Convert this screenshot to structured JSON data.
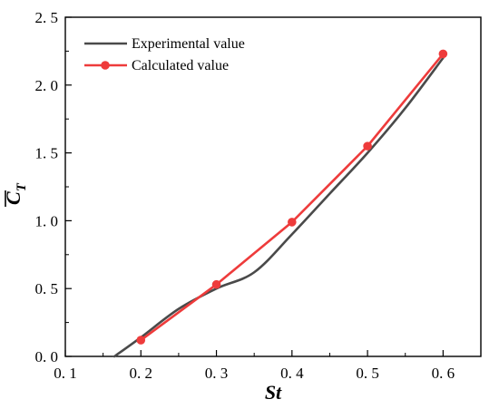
{
  "chart_data": {
    "type": "line",
    "title": "",
    "xlabel": "St",
    "ylabel_main": "C",
    "ylabel_subscript": "T",
    "xlim": [
      0.1,
      0.65
    ],
    "ylim": [
      0.0,
      2.5
    ],
    "x_ticks": [
      {
        "value": 0.1,
        "label": "0. 1"
      },
      {
        "value": 0.2,
        "label": "0. 2"
      },
      {
        "value": 0.3,
        "label": "0. 3"
      },
      {
        "value": 0.4,
        "label": "0. 4"
      },
      {
        "value": 0.5,
        "label": "0. 5"
      },
      {
        "value": 0.6,
        "label": "0. 6"
      }
    ],
    "y_ticks": [
      {
        "value": 0.0,
        "label": "0. 0"
      },
      {
        "value": 0.5,
        "label": "0. 5"
      },
      {
        "value": 1.0,
        "label": "1. 0"
      },
      {
        "value": 1.5,
        "label": "1. 5"
      },
      {
        "value": 2.0,
        "label": "2. 0"
      },
      {
        "value": 2.5,
        "label": "2. 5"
      }
    ],
    "grid": false,
    "legend_position": "top-left",
    "series": [
      {
        "name": "Experimental value",
        "color": "#4a4a4a",
        "marker": "none",
        "x": [
          0.165,
          0.2,
          0.25,
          0.3,
          0.35,
          0.4,
          0.45,
          0.5,
          0.55,
          0.6
        ],
        "y": [
          0.0,
          0.14,
          0.35,
          0.5,
          0.62,
          0.9,
          1.2,
          1.5,
          1.83,
          2.2
        ]
      },
      {
        "name": "Calculated value",
        "color": "#ee3b3b",
        "marker": "circle",
        "x": [
          0.2,
          0.3,
          0.4,
          0.5,
          0.6
        ],
        "y": [
          0.12,
          0.53,
          0.99,
          1.55,
          2.23
        ]
      }
    ]
  }
}
